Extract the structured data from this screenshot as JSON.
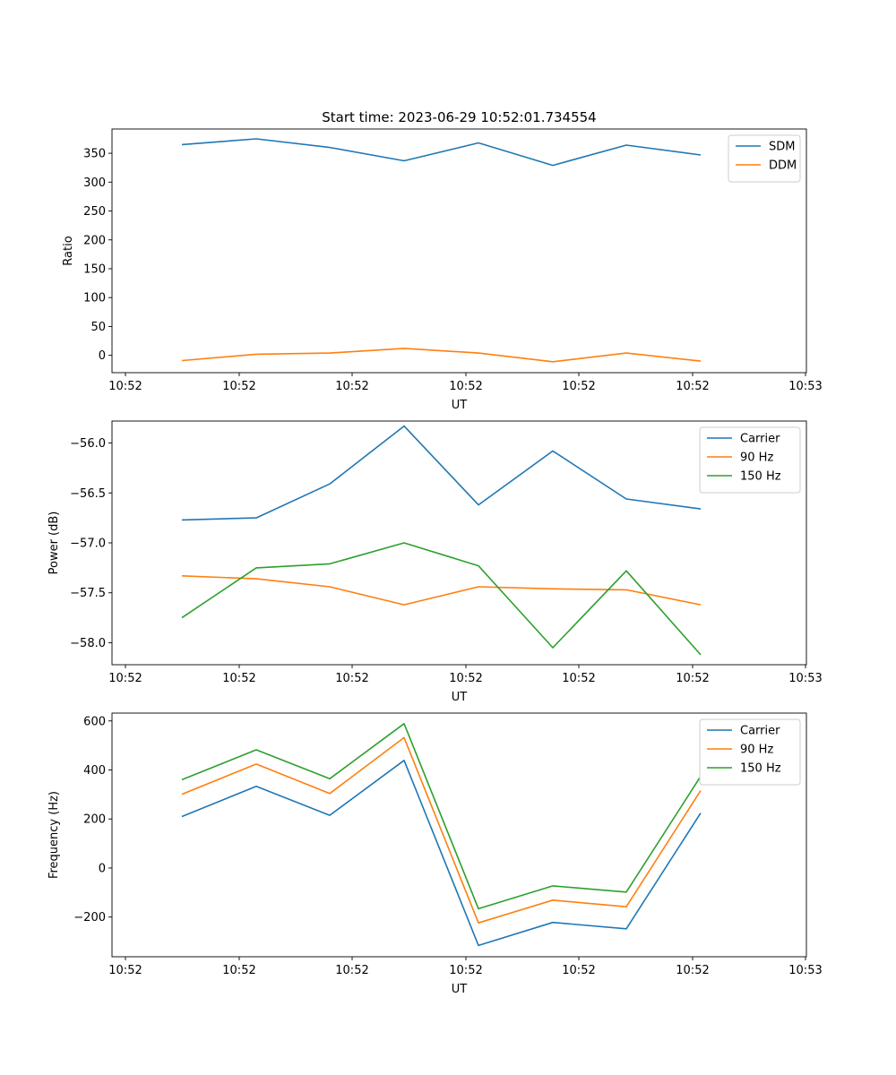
{
  "chart_data": [
    {
      "type": "line",
      "title": "Start time: 2023-06-29 10:52:01.734554",
      "xlabel": "UT",
      "ylabel": "Ratio",
      "x_tick_labels": [
        "10:52",
        "10:52",
        "10:52",
        "10:52",
        "10:52",
        "10:52",
        "10:52"
      ],
      "x_end_label": "10:53",
      "yticks": [
        0,
        50,
        100,
        150,
        200,
        250,
        300,
        350
      ],
      "ylim": [
        -30,
        392
      ],
      "legend": "top-right",
      "series": [
        {
          "name": "SDM",
          "color": "#1f77b4",
          "values": [
            365,
            375,
            360,
            337,
            368,
            329,
            364,
            347
          ]
        },
        {
          "name": "DDM",
          "color": "#ff7f0e",
          "values": [
            -9,
            2,
            4,
            12,
            4,
            -11,
            4,
            -10
          ]
        }
      ]
    },
    {
      "type": "line",
      "title": "",
      "xlabel": "UT",
      "ylabel": "Power (dB)",
      "x_tick_labels": [
        "10:52",
        "10:52",
        "10:52",
        "10:52",
        "10:52",
        "10:52",
        "10:52"
      ],
      "x_end_label": "10:53",
      "yticks": [
        -58.0,
        -57.5,
        -57.0,
        -56.5,
        -56.0
      ],
      "ytick_labels": [
        "−58.0",
        "−57.5",
        "−57.0",
        "−56.5",
        "−56.0"
      ],
      "ylim": [
        -58.22,
        -55.78
      ],
      "legend": "top-right",
      "series": [
        {
          "name": "Carrier",
          "color": "#1f77b4",
          "values": [
            -56.77,
            -56.75,
            -56.41,
            -55.83,
            -56.62,
            -56.08,
            -56.56,
            -56.66
          ]
        },
        {
          "name": "90 Hz",
          "color": "#ff7f0e",
          "values": [
            -57.33,
            -57.36,
            -57.44,
            -57.62,
            -57.44,
            -57.46,
            -57.47,
            -57.62
          ]
        },
        {
          "name": "150 Hz",
          "color": "#2ca02c",
          "values": [
            -57.75,
            -57.25,
            -57.21,
            -57.0,
            -57.23,
            -58.05,
            -57.28,
            -58.12
          ]
        }
      ]
    },
    {
      "type": "line",
      "title": "",
      "xlabel": "UT",
      "ylabel": "Frequency (Hz)",
      "x_tick_labels": [
        "10:52",
        "10:52",
        "10:52",
        "10:52",
        "10:52",
        "10:52",
        "10:52"
      ],
      "x_end_label": "10:53",
      "yticks": [
        -200,
        0,
        200,
        400,
        600
      ],
      "ytick_labels": [
        "−200",
        "0",
        "200",
        "400",
        "600"
      ],
      "ylim": [
        -362,
        632
      ],
      "legend": "top-right",
      "series": [
        {
          "name": "Carrier",
          "color": "#1f77b4",
          "values": [
            210,
            333,
            215,
            439,
            -316,
            -222,
            -248,
            224
          ]
        },
        {
          "name": "90 Hz",
          "color": "#ff7f0e",
          "values": [
            301,
            424,
            304,
            532,
            -224,
            -131,
            -158,
            316
          ]
        },
        {
          "name": "150 Hz",
          "color": "#2ca02c",
          "values": [
            360,
            482,
            364,
            589,
            -166,
            -73,
            -98,
            374
          ]
        }
      ]
    }
  ]
}
